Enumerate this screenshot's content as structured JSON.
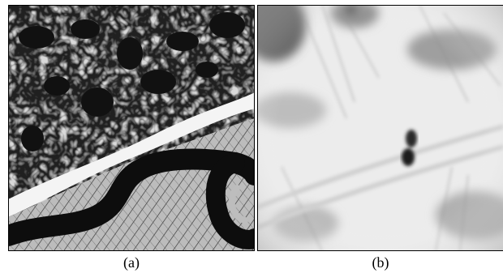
{
  "figure": {
    "panels": [
      {
        "caption": "(a)",
        "subject": "aerial-river-snow-high-contrast"
      },
      {
        "caption": "(b)",
        "subject": "aerial-snow-field-blurred-zoom"
      }
    ]
  }
}
